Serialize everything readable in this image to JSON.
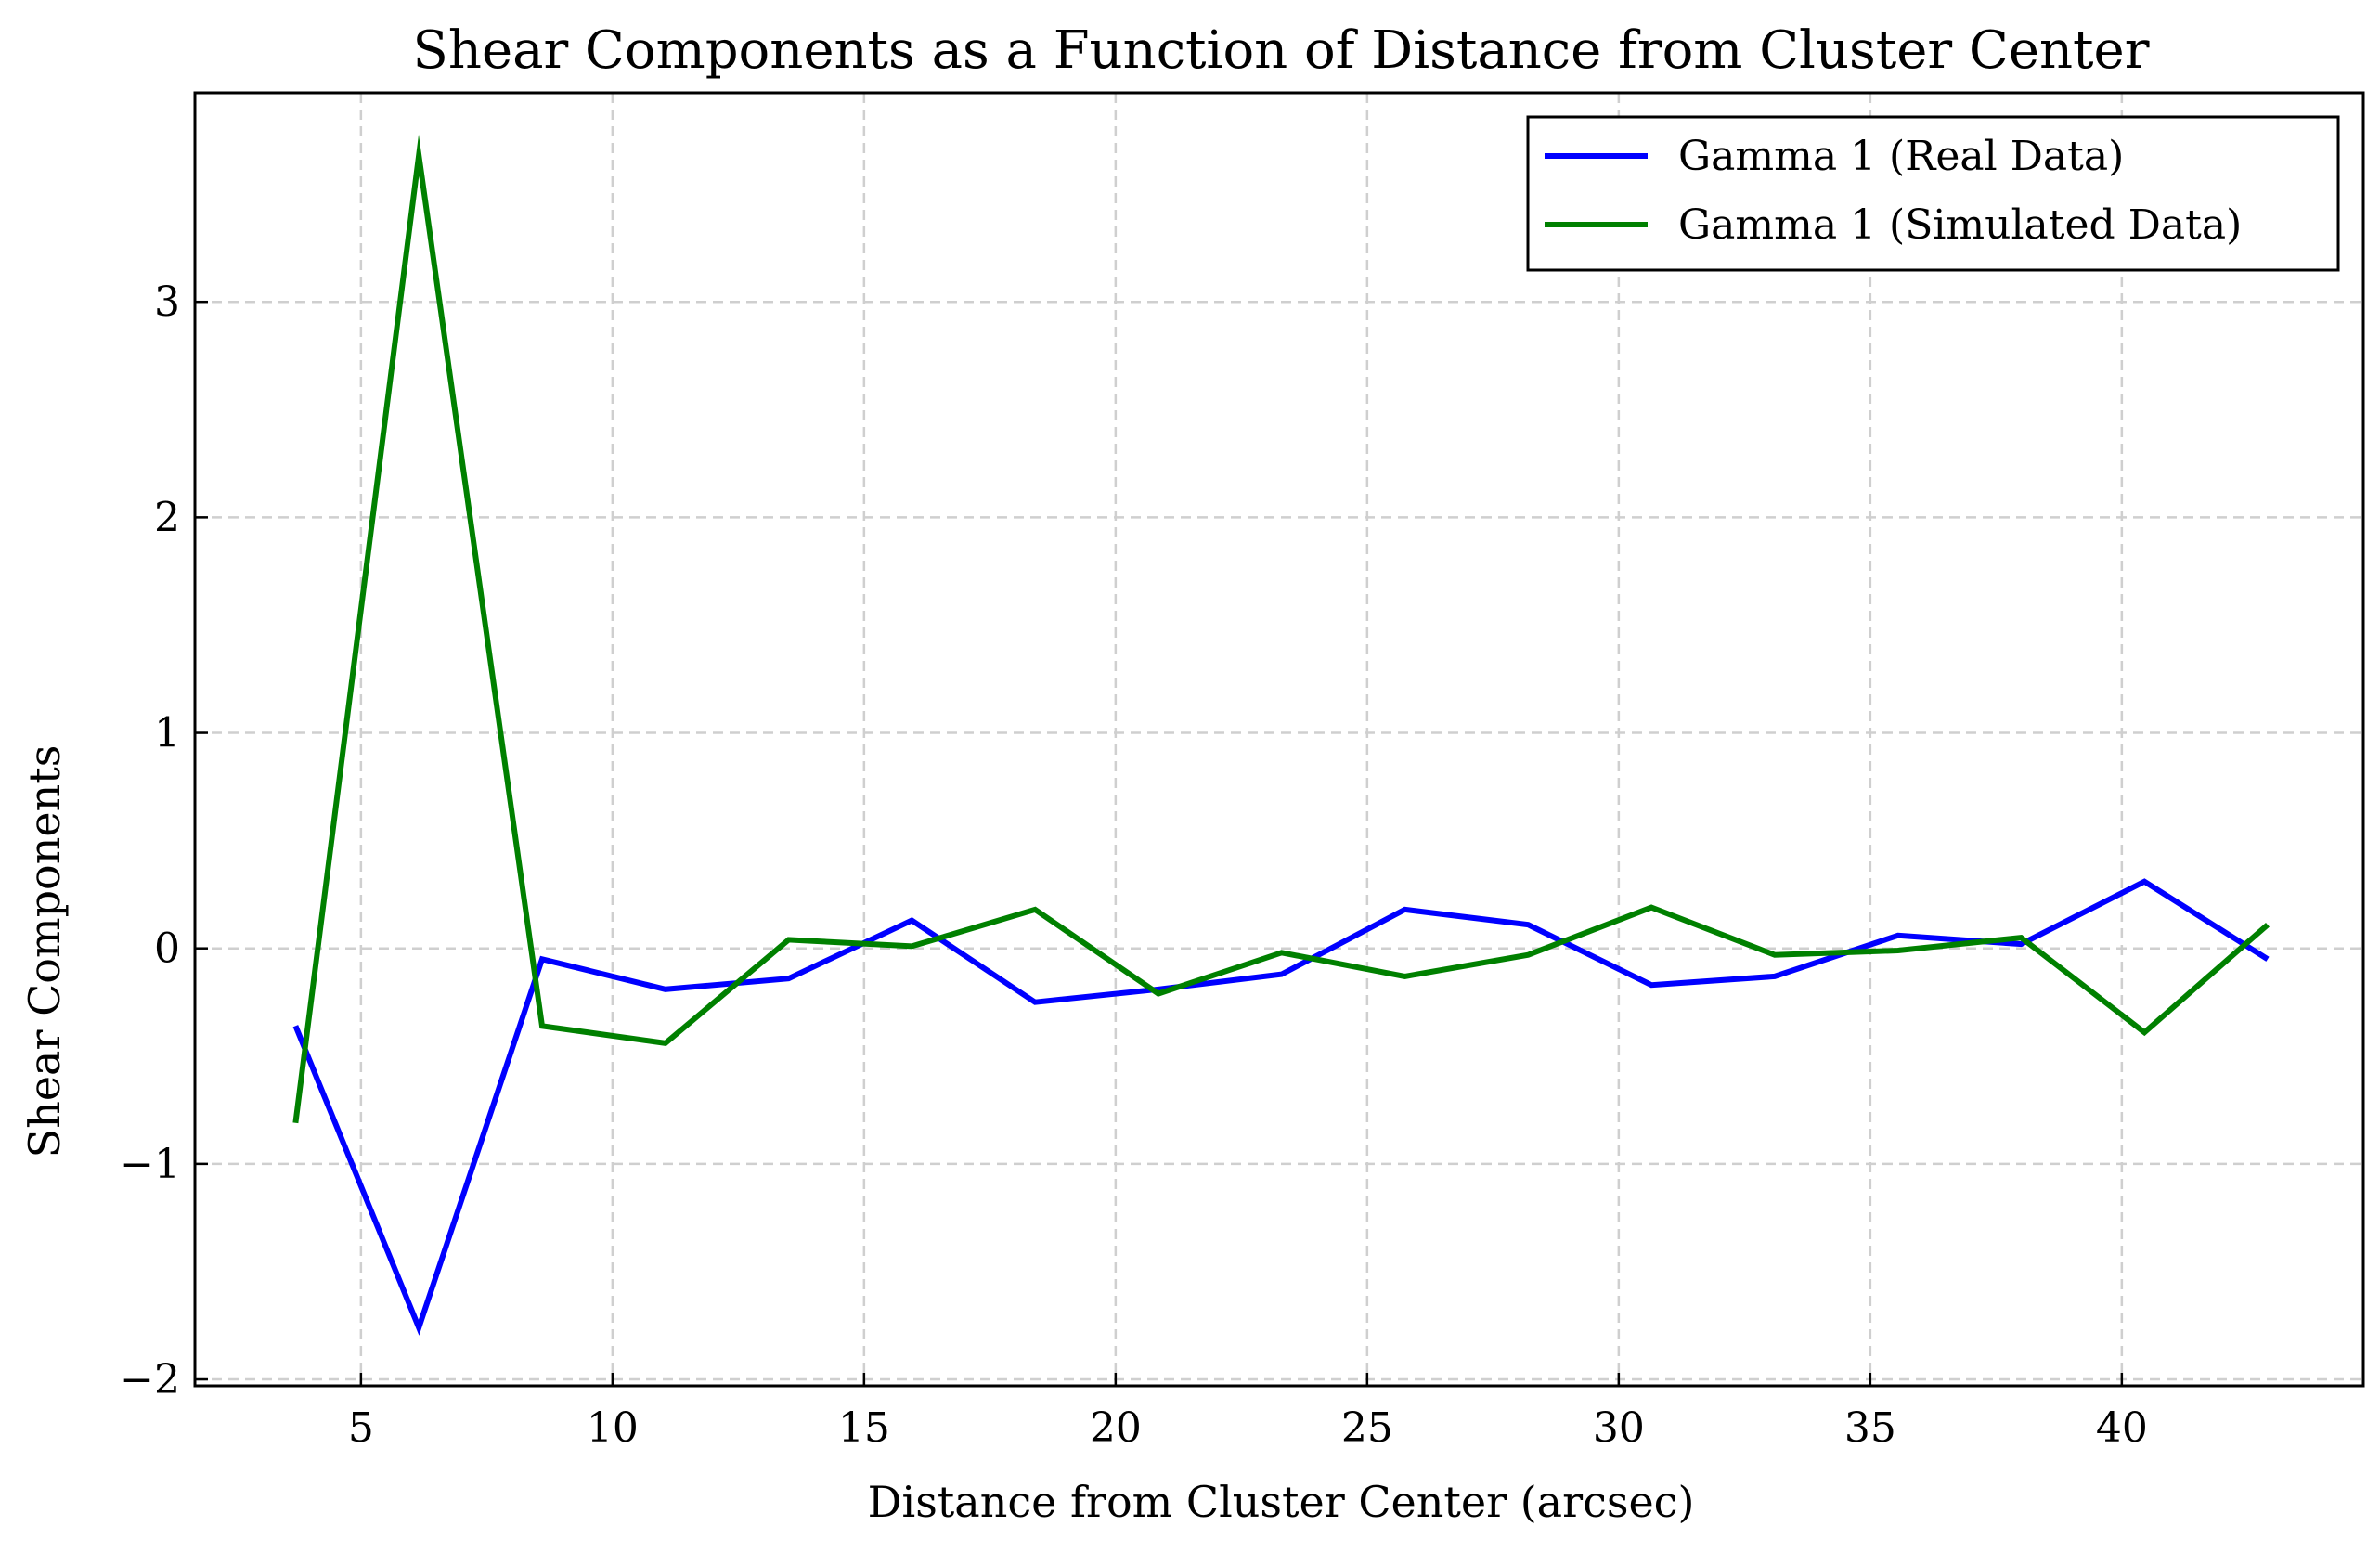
{
  "chart_data": {
    "type": "line",
    "title": "Shear Components as a Function of Distance from Cluster Center",
    "xlabel": "Distance from Cluster Center (arcsec)",
    "ylabel": "Shear Components",
    "xlim": [
      1.7,
      44.8
    ],
    "ylim": [
      -2.03,
      3.97
    ],
    "xticks": [
      5,
      10,
      15,
      20,
      25,
      30,
      35,
      40
    ],
    "yticks": [
      -2,
      -1,
      0,
      1,
      2,
      3
    ],
    "ytick_labels": [
      "−2",
      "−1",
      "0",
      "1",
      "2",
      "3"
    ],
    "grid": true,
    "legend_position": "top-right",
    "x": [
      3.7,
      6.15,
      8.6,
      11.05,
      13.5,
      15.95,
      18.4,
      20.85,
      23.3,
      25.75,
      28.2,
      30.65,
      33.1,
      35.55,
      38.0,
      40.45,
      42.9
    ],
    "series": [
      {
        "name": "Gamma 1 (Real Data)",
        "color": "#0000ff",
        "values": [
          -0.36,
          -1.76,
          -0.05,
          -0.19,
          -0.14,
          0.13,
          -0.25,
          -0.19,
          -0.12,
          0.18,
          0.11,
          -0.17,
          -0.13,
          0.06,
          0.02,
          0.31,
          -0.05
        ]
      },
      {
        "name": "Gamma 1 (Simulated Data)",
        "color": "#008000",
        "values": [
          -0.81,
          3.68,
          -0.36,
          -0.44,
          0.04,
          0.01,
          0.18,
          -0.21,
          -0.02,
          -0.13,
          -0.03,
          0.19,
          -0.03,
          -0.01,
          0.05,
          -0.39,
          0.11
        ]
      }
    ]
  }
}
